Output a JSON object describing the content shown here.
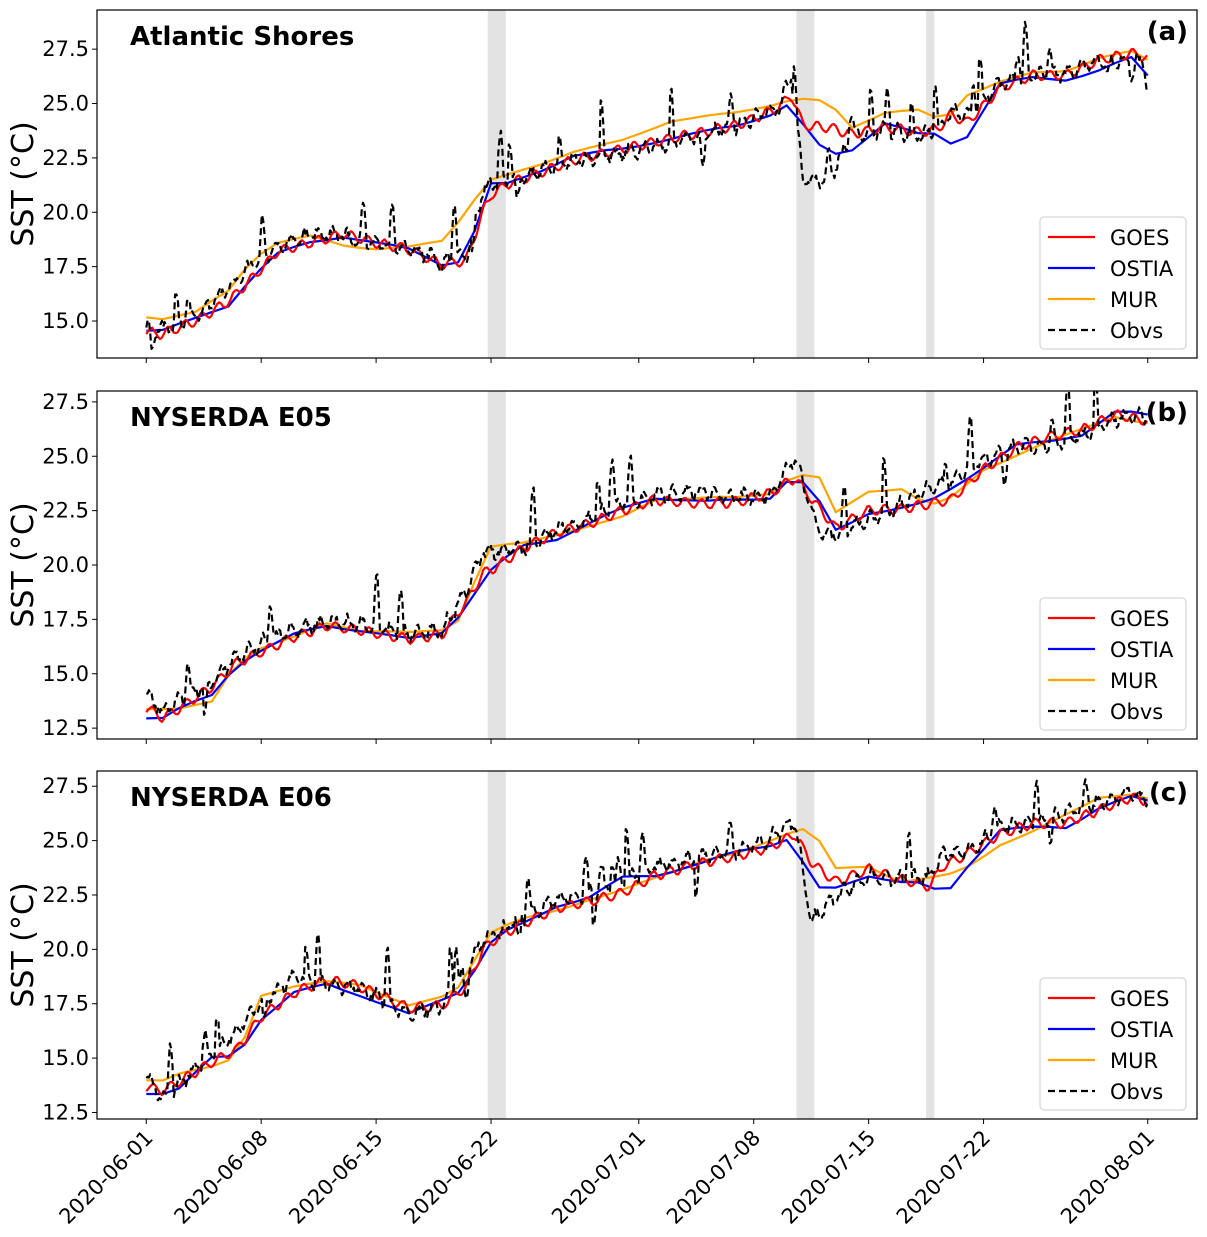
{
  "chart_data": {
    "type": "line",
    "x_axis": {
      "ticks": [
        "2020-06-01",
        "2020-06-08",
        "2020-06-15",
        "2020-06-22",
        "2020-07-01",
        "2020-07-08",
        "2020-07-15",
        "2020-07-22",
        "2020-08-01"
      ],
      "tick_days": [
        0,
        7,
        14,
        21,
        30,
        37,
        44,
        51,
        61
      ],
      "range_days": [
        -3,
        64
      ],
      "shaded_periods_days": [
        [
          20.8,
          21.9
        ],
        [
          39.6,
          40.7
        ],
        [
          47.5,
          48.0
        ]
      ]
    },
    "legend": [
      {
        "name": "GOES",
        "color": "#ff0000",
        "dash": false
      },
      {
        "name": "OSTIA",
        "color": "#0000ff",
        "dash": false
      },
      {
        "name": "MUR",
        "color": "#ffa500",
        "dash": false
      },
      {
        "name": "Obvs",
        "color": "#000000",
        "dash": true
      }
    ],
    "panels": [
      {
        "title": "Atlantic Shores",
        "letter": "(a)",
        "ylabel": "SST (°C)",
        "ylim": [
          13.3,
          29.3
        ],
        "yticks": [
          15.0,
          17.5,
          20.0,
          22.5,
          25.0,
          27.5
        ],
        "anchors_day": [
          0,
          1,
          3,
          5,
          6.5,
          8,
          10,
          12,
          14,
          16,
          18,
          19.5,
          20.5,
          21,
          22,
          24,
          26,
          29,
          32,
          36,
          38.5,
          39.3,
          40,
          41.5,
          43,
          45,
          47,
          48.2,
          49,
          50,
          52,
          54,
          56,
          58,
          60,
          61
        ],
        "series": {
          "GOES": [
            14.5,
            14.4,
            15.0,
            15.9,
            17.0,
            18.2,
            18.6,
            19.0,
            18.6,
            18.3,
            17.6,
            17.8,
            20.0,
            20.8,
            21.3,
            21.8,
            22.4,
            22.9,
            23.4,
            24.0,
            24.8,
            25.4,
            24.0,
            23.9,
            23.6,
            23.9,
            23.7,
            23.8,
            24.5,
            24.1,
            25.7,
            26.3,
            26.3,
            27.0,
            27.3,
            27.1
          ],
          "OSTIA": [
            14.6,
            14.6,
            15.1,
            15.7,
            17.1,
            18.1,
            18.6,
            18.9,
            18.6,
            18.3,
            17.6,
            17.8,
            20.5,
            21.3,
            21.3,
            21.9,
            22.6,
            22.9,
            23.4,
            24.0,
            24.6,
            25.1,
            24.0,
            22.6,
            22.9,
            24.1,
            23.6,
            23.6,
            23.2,
            23.5,
            25.9,
            26.2,
            26.1,
            26.5,
            27.1,
            26.3
          ],
          "MUR": [
            15.2,
            15.1,
            15.4,
            16.4,
            17.9,
            18.6,
            18.9,
            18.5,
            18.3,
            18.4,
            18.7,
            20.0,
            21.2,
            21.5,
            21.7,
            22.2,
            22.8,
            23.3,
            24.2,
            24.6,
            25.0,
            25.2,
            25.2,
            25.1,
            23.9,
            24.6,
            24.7,
            24.3,
            24.5,
            25.4,
            26.0,
            26.4,
            26.5,
            27.1,
            27.4,
            27.0
          ],
          "Obvs": [
            14.7,
            14.6,
            15.2,
            16.5,
            17.6,
            18.4,
            19.0,
            18.9,
            18.5,
            18.3,
            17.8,
            17.9,
            21.0,
            21.3,
            21.4,
            21.9,
            22.4,
            22.7,
            23.2,
            24.0,
            24.8,
            26.3,
            21.5,
            21.4,
            23.6,
            23.8,
            23.5,
            23.8,
            24.6,
            24.5,
            25.9,
            26.3,
            26.4,
            26.9,
            27.0,
            26.8
          ]
        }
      },
      {
        "title": "NYSERDA E05",
        "letter": "(b)",
        "ylabel": "SST (°C)",
        "ylim": [
          12.0,
          28.0
        ],
        "yticks": [
          12.5,
          15.0,
          17.5,
          20.0,
          22.5,
          25.0,
          27.5
        ],
        "anchors_day": [
          0,
          1,
          2,
          4,
          5.5,
          7,
          9,
          11,
          13,
          16,
          18,
          19.5,
          20.5,
          21.5,
          23,
          25,
          27,
          29,
          31,
          34,
          36,
          38,
          39.5,
          41,
          42,
          44,
          46,
          47.7,
          49,
          51,
          53,
          55,
          57,
          59,
          60,
          61
        ],
        "series": {
          "GOES": [
            13.4,
            13.0,
            13.4,
            14.4,
            15.5,
            16.0,
            16.7,
            17.2,
            17.0,
            16.6,
            16.8,
            18.3,
            19.6,
            20.0,
            20.8,
            21.5,
            21.9,
            22.5,
            23.0,
            22.8,
            22.9,
            23.3,
            24.0,
            22.6,
            21.7,
            22.5,
            22.6,
            22.8,
            23.0,
            24.4,
            25.4,
            25.9,
            26.2,
            26.9,
            26.8,
            26.6
          ],
          "OSTIA": [
            13.0,
            13.0,
            13.4,
            14.0,
            15.4,
            16.1,
            16.8,
            17.2,
            17.0,
            16.6,
            16.9,
            18.0,
            19.4,
            20.1,
            20.9,
            21.2,
            21.9,
            22.6,
            23.1,
            22.9,
            23.0,
            23.1,
            24.2,
            22.9,
            21.6,
            22.4,
            22.6,
            22.9,
            23.5,
            24.5,
            25.5,
            25.7,
            26.0,
            27.0,
            27.0,
            26.9
          ],
          "MUR": [
            13.4,
            13.4,
            13.4,
            13.7,
            15.5,
            16.2,
            16.7,
            17.3,
            17.0,
            16.9,
            17.0,
            17.7,
            20.8,
            20.9,
            21.0,
            21.4,
            21.8,
            22.2,
            23.0,
            23.1,
            23.1,
            23.3,
            24.2,
            24.0,
            22.4,
            23.4,
            23.5,
            22.7,
            23.1,
            24.4,
            25.0,
            25.7,
            26.3,
            26.8,
            26.6,
            26.5
          ],
          "Obvs": [
            14.2,
            13.2,
            13.8,
            14.6,
            15.8,
            16.4,
            17.0,
            17.4,
            17.3,
            16.8,
            17.0,
            18.8,
            20.6,
            20.6,
            20.8,
            21.6,
            22.1,
            22.9,
            23.2,
            23.4,
            23.1,
            23.2,
            24.9,
            21.5,
            21.4,
            22.1,
            22.8,
            23.5,
            23.8,
            24.9,
            25.4,
            25.5,
            26.0,
            26.7,
            26.9,
            26.8
          ]
        }
      },
      {
        "title": "NYSERDA E06",
        "letter": "(c)",
        "ylabel": "SST (°C)",
        "ylim": [
          12.2,
          28.2
        ],
        "yticks": [
          12.5,
          15.0,
          17.5,
          20.0,
          22.5,
          25.0,
          27.5
        ],
        "anchors_day": [
          0,
          1,
          2,
          4,
          5.5,
          7,
          9,
          11,
          13,
          16,
          18,
          19.5,
          20.5,
          21.5,
          23,
          25,
          27,
          29,
          31,
          34,
          36,
          38,
          39.5,
          40.5,
          42,
          44,
          46,
          47.7,
          48.5,
          50,
          52,
          54,
          56,
          58,
          60,
          61
        ],
        "series": {
          "GOES": [
            13.7,
            13.5,
            13.9,
            14.8,
            15.4,
            16.9,
            18.0,
            18.6,
            18.3,
            17.3,
            17.4,
            18.3,
            20.0,
            20.6,
            21.2,
            21.9,
            22.2,
            22.6,
            23.4,
            24.0,
            24.3,
            24.7,
            25.3,
            24.0,
            23.1,
            23.7,
            23.2,
            22.9,
            23.8,
            24.4,
            25.3,
            25.8,
            25.8,
            26.4,
            27.0,
            26.8
          ],
          "OSTIA": [
            13.4,
            13.4,
            13.6,
            15.0,
            15.1,
            16.8,
            18.0,
            18.4,
            17.9,
            17.0,
            17.7,
            18.2,
            19.9,
            20.7,
            21.2,
            22.0,
            22.4,
            23.3,
            23.4,
            24.0,
            24.5,
            24.8,
            25.2,
            22.8,
            22.8,
            23.4,
            23.1,
            23.0,
            22.3,
            23.8,
            25.5,
            25.6,
            25.6,
            26.5,
            27.0,
            26.8
          ],
          "MUR": [
            14.0,
            14.0,
            14.3,
            14.6,
            15.0,
            17.9,
            18.3,
            18.5,
            18.4,
            17.4,
            17.8,
            18.5,
            20.6,
            21.0,
            21.4,
            21.8,
            22.3,
            22.7,
            23.3,
            24.1,
            24.4,
            25.0,
            25.5,
            25.6,
            23.7,
            23.8,
            23.1,
            23.3,
            23.3,
            23.8,
            24.8,
            25.4,
            26.2,
            27.0,
            27.1,
            26.9
          ],
          "Obvs": [
            14.3,
            13.1,
            13.8,
            15.2,
            16.2,
            17.6,
            18.7,
            18.4,
            18.2,
            17.1,
            17.4,
            19.0,
            20.4,
            20.8,
            21.5,
            22.3,
            22.6,
            23.1,
            23.8,
            24.3,
            24.5,
            25.1,
            25.9,
            21.3,
            22.4,
            23.4,
            23.2,
            23.3,
            24.4,
            24.5,
            25.6,
            25.8,
            26.3,
            26.7,
            27.2,
            26.8
          ]
        }
      }
    ]
  }
}
